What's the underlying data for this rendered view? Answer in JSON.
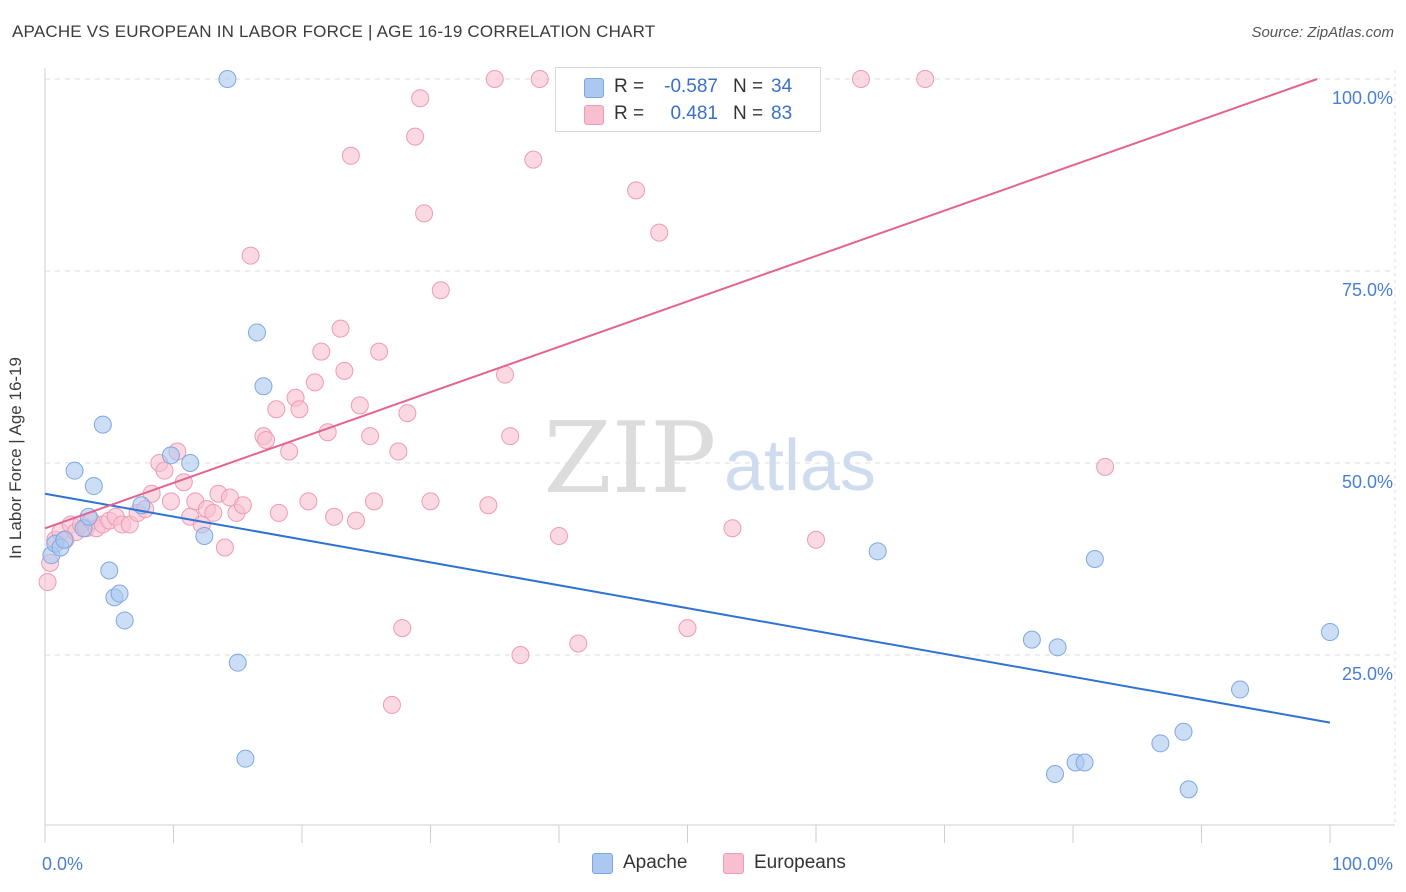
{
  "title": "APACHE VS EUROPEAN IN LABOR FORCE | AGE 16-19 CORRELATION CHART",
  "source": "Source: ZipAtlas.com",
  "watermark": {
    "zip": "ZIP",
    "atlas": "atlas"
  },
  "colors": {
    "apache_fill": "#aac8f0",
    "apache_stroke": "#7fa8e0",
    "apache_line": "#2f73d2",
    "europeans_fill": "#f8bfd0",
    "europeans_stroke": "#f09ab5",
    "europeans_line": "#e2648f",
    "tick_label": "#4a7fd0",
    "grid": "#dddddd"
  },
  "stats": [
    {
      "r_label": "R =",
      "r_value": "-0.587",
      "n_label": "N =",
      "n_value": "34"
    },
    {
      "r_label": "R =",
      "r_value": "0.481",
      "n_label": "N =",
      "n_value": "83"
    }
  ],
  "legend": [
    {
      "label": "Apache"
    },
    {
      "label": "Europeans"
    }
  ],
  "chart_data": {
    "type": "scatter",
    "title": "APACHE VS EUROPEAN IN LABOR FORCE | AGE 16-19 CORRELATION CHART",
    "xlabel": "",
    "ylabel": "In Labor Force | Age 16-19",
    "xlim": [
      0,
      100
    ],
    "ylim": [
      0,
      102
    ],
    "x_tick_labels": [
      "0.0%",
      "100.0%"
    ],
    "y_ticks": [
      25,
      50,
      75,
      100
    ],
    "y_tick_labels": [
      "25.0%",
      "50.0%",
      "75.0%",
      "100.0%"
    ],
    "grid": true,
    "legend_position": "bottom-center",
    "series": [
      {
        "name": "Apache",
        "color": "#aac8f0",
        "points": [
          {
            "x": 0.5,
            "y": 38.0
          },
          {
            "x": 0.8,
            "y": 39.5
          },
          {
            "x": 1.2,
            "y": 39.0
          },
          {
            "x": 1.5,
            "y": 40.0
          },
          {
            "x": 2.3,
            "y": 49.0
          },
          {
            "x": 3.0,
            "y": 41.5
          },
          {
            "x": 3.4,
            "y": 43.0
          },
          {
            "x": 3.8,
            "y": 47.0
          },
          {
            "x": 4.5,
            "y": 55.0
          },
          {
            "x": 5.0,
            "y": 36.0
          },
          {
            "x": 5.4,
            "y": 32.5
          },
          {
            "x": 5.8,
            "y": 33.0
          },
          {
            "x": 6.2,
            "y": 29.5
          },
          {
            "x": 7.5,
            "y": 44.5
          },
          {
            "x": 9.8,
            "y": 51.0
          },
          {
            "x": 11.3,
            "y": 50.0
          },
          {
            "x": 12.4,
            "y": 40.5
          },
          {
            "x": 14.2,
            "y": 100.0
          },
          {
            "x": 15.0,
            "y": 24.0
          },
          {
            "x": 15.6,
            "y": 11.5
          },
          {
            "x": 16.5,
            "y": 67.0
          },
          {
            "x": 17.0,
            "y": 60.0
          },
          {
            "x": 64.8,
            "y": 38.5
          },
          {
            "x": 76.8,
            "y": 27.0
          },
          {
            "x": 78.6,
            "y": 9.5
          },
          {
            "x": 78.8,
            "y": 26.0
          },
          {
            "x": 80.2,
            "y": 11.0
          },
          {
            "x": 80.9,
            "y": 11.0
          },
          {
            "x": 81.7,
            "y": 37.5
          },
          {
            "x": 86.8,
            "y": 13.5
          },
          {
            "x": 88.6,
            "y": 15.0
          },
          {
            "x": 89.0,
            "y": 7.5
          },
          {
            "x": 93.0,
            "y": 20.5
          },
          {
            "x": 100.0,
            "y": 28.0
          }
        ]
      },
      {
        "name": "Europeans",
        "color": "#f8bfd0",
        "points": [
          {
            "x": 0.2,
            "y": 34.5
          },
          {
            "x": 0.4,
            "y": 37.0
          },
          {
            "x": 0.8,
            "y": 40.0
          },
          {
            "x": 1.2,
            "y": 41.0
          },
          {
            "x": 1.6,
            "y": 40.0
          },
          {
            "x": 2.0,
            "y": 42.0
          },
          {
            "x": 2.4,
            "y": 41.0
          },
          {
            "x": 2.8,
            "y": 42.0
          },
          {
            "x": 3.2,
            "y": 41.5
          },
          {
            "x": 3.6,
            "y": 42.5
          },
          {
            "x": 4.0,
            "y": 41.5
          },
          {
            "x": 4.5,
            "y": 42.0
          },
          {
            "x": 5.0,
            "y": 42.5
          },
          {
            "x": 5.5,
            "y": 43.0
          },
          {
            "x": 6.0,
            "y": 42.0
          },
          {
            "x": 6.6,
            "y": 42.0
          },
          {
            "x": 7.2,
            "y": 43.5
          },
          {
            "x": 7.8,
            "y": 44.0
          },
          {
            "x": 8.3,
            "y": 46.0
          },
          {
            "x": 8.9,
            "y": 50.0
          },
          {
            "x": 9.3,
            "y": 49.0
          },
          {
            "x": 9.8,
            "y": 45.0
          },
          {
            "x": 10.3,
            "y": 51.5
          },
          {
            "x": 10.8,
            "y": 47.5
          },
          {
            "x": 11.3,
            "y": 43.0
          },
          {
            "x": 11.7,
            "y": 45.0
          },
          {
            "x": 12.2,
            "y": 42.0
          },
          {
            "x": 12.6,
            "y": 44.0
          },
          {
            "x": 13.1,
            "y": 43.5
          },
          {
            "x": 13.5,
            "y": 46.0
          },
          {
            "x": 14.0,
            "y": 39.0
          },
          {
            "x": 14.4,
            "y": 45.5
          },
          {
            "x": 14.9,
            "y": 43.5
          },
          {
            "x": 15.4,
            "y": 44.5
          },
          {
            "x": 16.0,
            "y": 77.0
          },
          {
            "x": 17.0,
            "y": 53.5
          },
          {
            "x": 17.2,
            "y": 53.0
          },
          {
            "x": 18.0,
            "y": 57.0
          },
          {
            "x": 18.2,
            "y": 43.5
          },
          {
            "x": 19.0,
            "y": 51.5
          },
          {
            "x": 19.5,
            "y": 58.5
          },
          {
            "x": 19.8,
            "y": 57.0
          },
          {
            "x": 20.5,
            "y": 45.0
          },
          {
            "x": 21.0,
            "y": 60.5
          },
          {
            "x": 21.5,
            "y": 64.5
          },
          {
            "x": 22.0,
            "y": 54.0
          },
          {
            "x": 22.5,
            "y": 43.0
          },
          {
            "x": 23.0,
            "y": 67.5
          },
          {
            "x": 23.3,
            "y": 62.0
          },
          {
            "x": 23.8,
            "y": 90.0
          },
          {
            "x": 24.2,
            "y": 42.5
          },
          {
            "x": 24.5,
            "y": 57.5
          },
          {
            "x": 25.3,
            "y": 53.5
          },
          {
            "x": 25.6,
            "y": 45.0
          },
          {
            "x": 26.0,
            "y": 64.5
          },
          {
            "x": 27.0,
            "y": 18.5
          },
          {
            "x": 27.5,
            "y": 51.5
          },
          {
            "x": 27.8,
            "y": 28.5
          },
          {
            "x": 28.2,
            "y": 56.5
          },
          {
            "x": 28.8,
            "y": 92.5
          },
          {
            "x": 29.2,
            "y": 97.5
          },
          {
            "x": 29.5,
            "y": 82.5
          },
          {
            "x": 30.0,
            "y": 45.0
          },
          {
            "x": 30.8,
            "y": 72.5
          },
          {
            "x": 34.5,
            "y": 44.5
          },
          {
            "x": 35.0,
            "y": 100.0
          },
          {
            "x": 35.8,
            "y": 61.5
          },
          {
            "x": 36.2,
            "y": 53.5
          },
          {
            "x": 37.0,
            "y": 25.0
          },
          {
            "x": 38.0,
            "y": 89.5
          },
          {
            "x": 38.5,
            "y": 100.0
          },
          {
            "x": 40.0,
            "y": 40.5
          },
          {
            "x": 41.0,
            "y": 100.0
          },
          {
            "x": 41.5,
            "y": 26.5
          },
          {
            "x": 46.0,
            "y": 85.5
          },
          {
            "x": 47.8,
            "y": 80.0
          },
          {
            "x": 50.0,
            "y": 28.5
          },
          {
            "x": 53.5,
            "y": 41.5
          },
          {
            "x": 60.0,
            "y": 40.0
          },
          {
            "x": 63.5,
            "y": 100.0
          },
          {
            "x": 68.5,
            "y": 100.0
          },
          {
            "x": 82.5,
            "y": 49.5
          },
          {
            "x": 42.0,
            "y": 100.0
          }
        ]
      }
    ],
    "trendlines": [
      {
        "name": "Apache",
        "color": "#2f73d2",
        "x": [
          0,
          100
        ],
        "y": [
          46.0,
          16.2
        ]
      },
      {
        "name": "Europeans",
        "color": "#e2648f",
        "x": [
          0,
          99.0
        ],
        "y": [
          41.5,
          100.0
        ]
      }
    ]
  }
}
